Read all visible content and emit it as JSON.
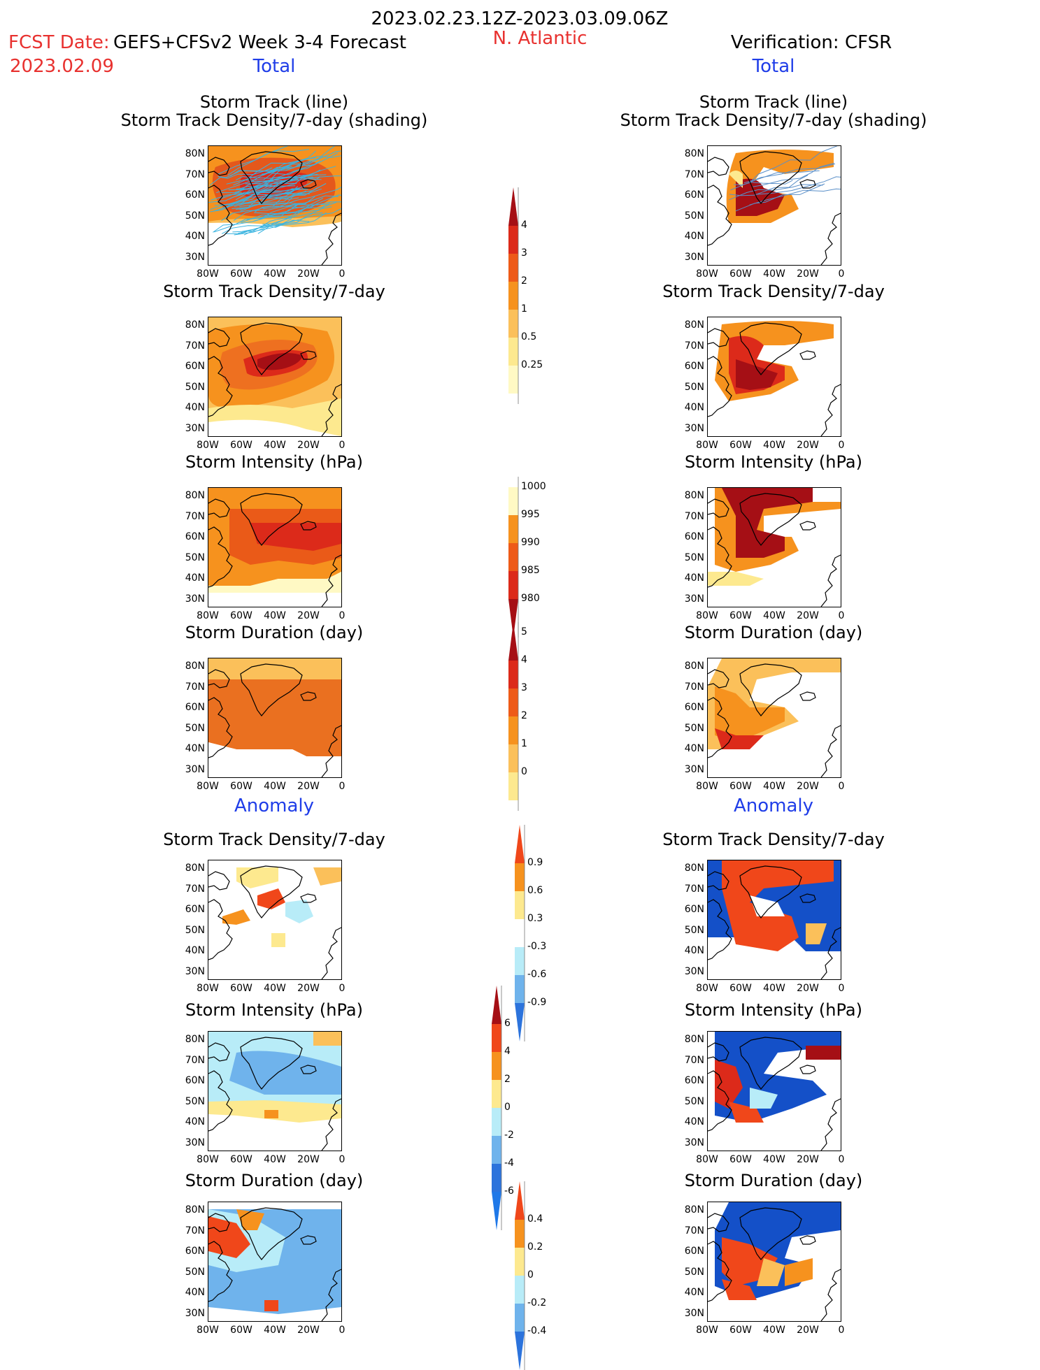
{
  "header": {
    "period": "2023.02.23.12Z-2023.03.09.06Z",
    "fcst_label": "FCST Date:",
    "fcst_date": "2023.02.09",
    "model": "GEFS+CFSv2 Week 3-4 Forecast",
    "region": "N. Atlantic",
    "verification": "Verification: CFSR"
  },
  "sections": {
    "total": "Total",
    "anomaly": "Anomaly"
  },
  "panel_titles": {
    "track_line": "Storm Track (line)",
    "track_shading": "Storm Track Density/7-day (shading)",
    "density": "Storm Track Density/7-day",
    "intensity": "Storm Intensity (hPa)",
    "duration": "Storm Duration (day)"
  },
  "axes": {
    "lat": [
      "80N",
      "70N",
      "60N",
      "50N",
      "40N",
      "30N"
    ],
    "lon": [
      "80W",
      "60W",
      "40W",
      "20W",
      "0"
    ]
  },
  "colorbars": {
    "density_total": [
      "4",
      "3",
      "2",
      "1",
      "0.5",
      "0.25"
    ],
    "intensity_total": [
      "1000",
      "995",
      "990",
      "985",
      "980"
    ],
    "duration_total": [
      "5",
      "4",
      "3",
      "2",
      "1",
      "0"
    ],
    "density_anom": [
      "0.9",
      "0.6",
      "0.3",
      "-0.3",
      "-0.6",
      "-0.9"
    ],
    "intensity_anom": [
      "6",
      "4",
      "2",
      "0",
      "-2",
      "-4",
      "-6"
    ],
    "duration_anom": [
      "0.4",
      "0.2",
      "0",
      "-0.2",
      "-0.4"
    ]
  },
  "colors": {
    "dark_red": "#a50f15",
    "red": "#dc2a1a",
    "red_orange": "#f0471a",
    "orange": "#f6921e",
    "light_orange": "#fbc05a",
    "pale_yellow": "#fde98f",
    "lightest_yellow": "#fff9c4",
    "light_blue": "#b8ecf8",
    "mid_blue": "#6fb3ec",
    "blue": "#2c73dc",
    "dark_blue": "#1450c8",
    "track_line": "#3ab4e0"
  }
}
